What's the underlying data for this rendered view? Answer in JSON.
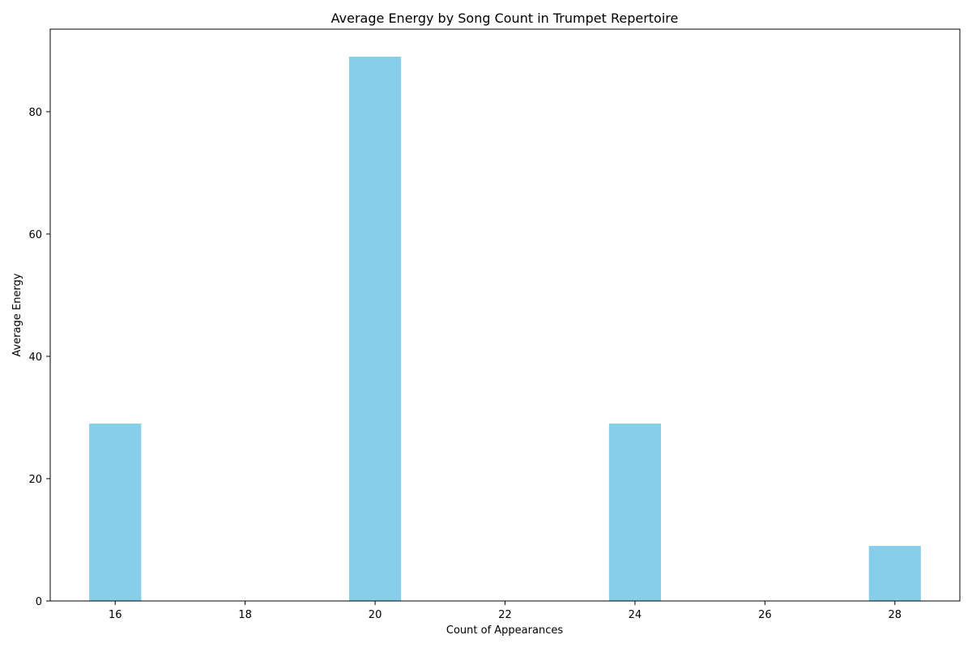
{
  "chart_data": {
    "type": "bar",
    "title": "Average Energy by Song Count in Trumpet Repertoire",
    "xlabel": "Count of Appearances",
    "ylabel": "Average Energy",
    "x": [
      16,
      20,
      24,
      28
    ],
    "values": [
      29,
      89,
      29,
      9
    ],
    "bar_width": 0.8,
    "xlim": [
      15,
      29
    ],
    "ylim": [
      0,
      93.5
    ],
    "xticks": [
      16,
      18,
      20,
      22,
      24,
      26,
      28
    ],
    "yticks": [
      0,
      20,
      40,
      60,
      80
    ],
    "bar_color": "#87ceeb",
    "grid": false
  }
}
